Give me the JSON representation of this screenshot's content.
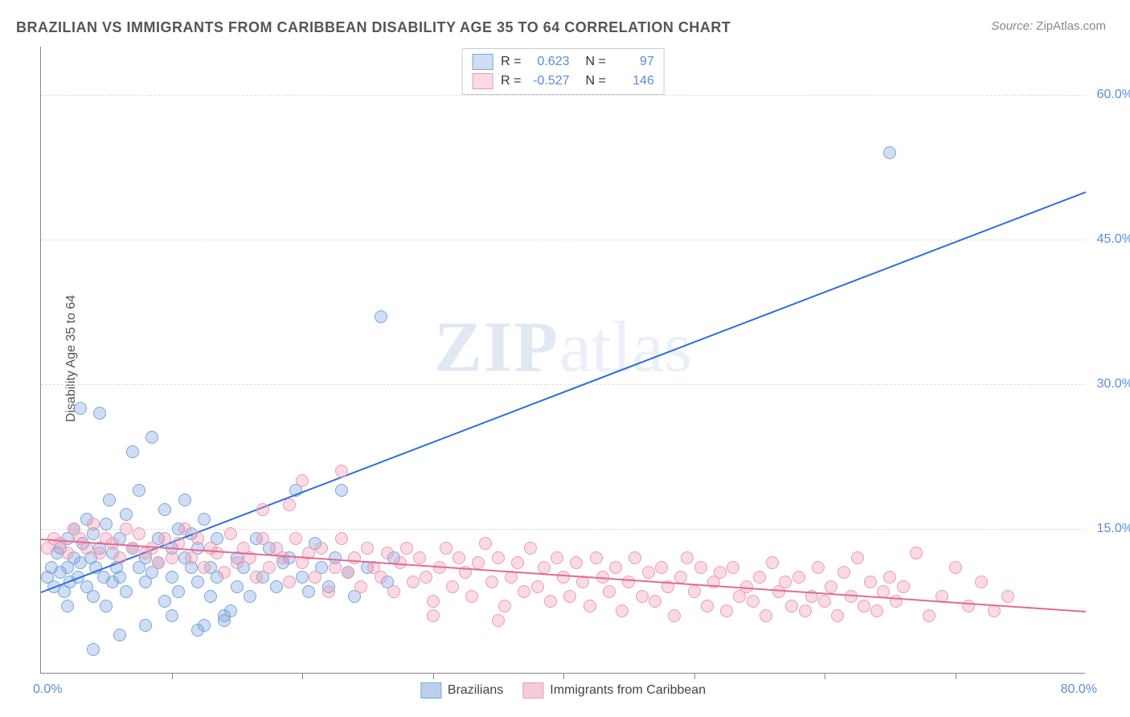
{
  "title": "BRAZILIAN VS IMMIGRANTS FROM CARIBBEAN DISABILITY AGE 35 TO 64 CORRELATION CHART",
  "source_prefix": "Source: ",
  "source_name": "ZipAtlas.com",
  "ylabel": "Disability Age 35 to 64",
  "watermark_a": "ZIP",
  "watermark_b": "atlas",
  "chart": {
    "type": "scatter",
    "xlim": [
      0,
      80
    ],
    "ylim": [
      0,
      65
    ],
    "x_tick_step": 10,
    "y_ticks": [
      15,
      30,
      45,
      60
    ],
    "y_tick_labels": [
      "15.0%",
      "30.0%",
      "45.0%",
      "60.0%"
    ],
    "x_label_min": "0.0%",
    "x_label_max": "80.0%",
    "grid_color": "#dddddd",
    "axis_color": "#888888",
    "background": "#ffffff",
    "marker_radius": 8,
    "series": [
      {
        "name": "Brazilians",
        "fill": "rgba(120,160,220,0.35)",
        "stroke": "#7aa5de",
        "R": "0.623",
        "N": "97",
        "trend": {
          "x1": 0,
          "y1": 8.5,
          "x2": 80,
          "y2": 50,
          "color": "#2e6fd6",
          "width": 2
        },
        "points": [
          [
            0.5,
            10
          ],
          [
            0.8,
            11
          ],
          [
            1,
            9
          ],
          [
            1.2,
            12.5
          ],
          [
            1.5,
            10.5
          ],
          [
            1.5,
            13
          ],
          [
            1.8,
            8.5
          ],
          [
            2,
            14
          ],
          [
            2,
            11
          ],
          [
            2.2,
            9.5
          ],
          [
            2.5,
            12
          ],
          [
            2.5,
            15
          ],
          [
            2.8,
            10
          ],
          [
            3,
            11.5
          ],
          [
            3,
            27.5
          ],
          [
            3.2,
            13.5
          ],
          [
            3.5,
            9
          ],
          [
            3.5,
            16
          ],
          [
            3.8,
            12
          ],
          [
            4,
            14.5
          ],
          [
            4,
            8
          ],
          [
            4.2,
            11
          ],
          [
            4.5,
            27
          ],
          [
            4.5,
            13
          ],
          [
            4.8,
            10
          ],
          [
            5,
            15.5
          ],
          [
            5,
            7
          ],
          [
            5.2,
            18
          ],
          [
            5.5,
            12.5
          ],
          [
            5.5,
            9.5
          ],
          [
            5.8,
            11
          ],
          [
            6,
            14
          ],
          [
            6,
            10
          ],
          [
            6.5,
            8.5
          ],
          [
            6.5,
            16.5
          ],
          [
            7,
            23
          ],
          [
            7,
            13
          ],
          [
            7.5,
            11
          ],
          [
            7.5,
            19
          ],
          [
            8,
            9.5
          ],
          [
            8,
            12
          ],
          [
            8.5,
            10.5
          ],
          [
            8.5,
            24.5
          ],
          [
            9,
            14
          ],
          [
            9,
            11.5
          ],
          [
            9.5,
            7.5
          ],
          [
            9.5,
            17
          ],
          [
            10,
            13
          ],
          [
            10,
            10
          ],
          [
            10.5,
            15
          ],
          [
            10.5,
            8.5
          ],
          [
            11,
            12
          ],
          [
            11,
            18
          ],
          [
            11.5,
            11
          ],
          [
            11.5,
            14.5
          ],
          [
            12,
            9.5
          ],
          [
            12,
            13
          ],
          [
            12.5,
            16
          ],
          [
            12.5,
            5
          ],
          [
            13,
            11
          ],
          [
            13,
            8
          ],
          [
            13.5,
            14
          ],
          [
            13.5,
            10
          ],
          [
            14,
            6
          ],
          [
            14.5,
            6.5
          ],
          [
            15,
            9
          ],
          [
            15,
            12
          ],
          [
            15.5,
            11
          ],
          [
            16,
            8
          ],
          [
            16.5,
            14
          ],
          [
            17,
            10
          ],
          [
            17.5,
            13
          ],
          [
            18,
            9
          ],
          [
            18.5,
            11.5
          ],
          [
            19,
            12
          ],
          [
            19.5,
            19
          ],
          [
            20,
            10
          ],
          [
            20.5,
            8.5
          ],
          [
            21,
            13.5
          ],
          [
            21.5,
            11
          ],
          [
            22,
            9
          ],
          [
            22.5,
            12
          ],
          [
            23,
            19
          ],
          [
            23.5,
            10.5
          ],
          [
            24,
            8
          ],
          [
            25,
            11
          ],
          [
            26,
            37
          ],
          [
            26.5,
            9.5
          ],
          [
            27,
            12
          ],
          [
            4,
            2.5
          ],
          [
            6,
            4
          ],
          [
            8,
            5
          ],
          [
            10,
            6
          ],
          [
            12,
            4.5
          ],
          [
            14,
            5.5
          ],
          [
            65,
            54
          ],
          [
            2,
            7
          ]
        ]
      },
      {
        "name": "Immigrants from Caribbean",
        "fill": "rgba(240,150,175,0.35)",
        "stroke": "#ea9cb5",
        "R": "-0.527",
        "N": "146",
        "trend": {
          "x1": 0,
          "y1": 14,
          "x2": 80,
          "y2": 6.5,
          "color": "#e36a92",
          "width": 2
        },
        "points": [
          [
            0.5,
            13
          ],
          [
            1,
            14
          ],
          [
            1.5,
            13.5
          ],
          [
            2,
            12.5
          ],
          [
            2.5,
            15
          ],
          [
            3,
            14
          ],
          [
            3.5,
            13
          ],
          [
            4,
            15.5
          ],
          [
            4.5,
            12.5
          ],
          [
            5,
            14
          ],
          [
            5.5,
            13.5
          ],
          [
            6,
            12
          ],
          [
            6.5,
            15
          ],
          [
            7,
            13
          ],
          [
            7.5,
            14.5
          ],
          [
            8,
            12.5
          ],
          [
            8.5,
            13
          ],
          [
            9,
            11.5
          ],
          [
            9.5,
            14
          ],
          [
            10,
            12
          ],
          [
            10.5,
            13.5
          ],
          [
            11,
            15
          ],
          [
            11.5,
            12
          ],
          [
            12,
            14
          ],
          [
            12.5,
            11
          ],
          [
            13,
            13
          ],
          [
            13.5,
            12.5
          ],
          [
            14,
            10.5
          ],
          [
            14.5,
            14.5
          ],
          [
            15,
            11.5
          ],
          [
            15.5,
            13
          ],
          [
            16,
            12
          ],
          [
            16.5,
            10
          ],
          [
            17,
            14
          ],
          [
            17.5,
            11
          ],
          [
            18,
            13
          ],
          [
            18.5,
            12
          ],
          [
            19,
            9.5
          ],
          [
            19.5,
            14
          ],
          [
            20,
            11.5
          ],
          [
            20.5,
            12.5
          ],
          [
            21,
            10
          ],
          [
            21.5,
            13
          ],
          [
            22,
            8.5
          ],
          [
            22.5,
            11
          ],
          [
            23,
            14
          ],
          [
            23.5,
            10.5
          ],
          [
            24,
            12
          ],
          [
            24.5,
            9
          ],
          [
            25,
            13
          ],
          [
            25.5,
            11
          ],
          [
            26,
            10
          ],
          [
            26.5,
            12.5
          ],
          [
            27,
            8.5
          ],
          [
            27.5,
            11.5
          ],
          [
            28,
            13
          ],
          [
            28.5,
            9.5
          ],
          [
            29,
            12
          ],
          [
            29.5,
            10
          ],
          [
            30,
            7.5
          ],
          [
            30.5,
            11
          ],
          [
            31,
            13
          ],
          [
            31.5,
            9
          ],
          [
            32,
            12
          ],
          [
            32.5,
            10.5
          ],
          [
            33,
            8
          ],
          [
            33.5,
            11.5
          ],
          [
            34,
            13.5
          ],
          [
            34.5,
            9.5
          ],
          [
            35,
            12
          ],
          [
            35.5,
            7
          ],
          [
            36,
            10
          ],
          [
            36.5,
            11.5
          ],
          [
            37,
            8.5
          ],
          [
            37.5,
            13
          ],
          [
            38,
            9
          ],
          [
            38.5,
            11
          ],
          [
            39,
            7.5
          ],
          [
            39.5,
            12
          ],
          [
            40,
            10
          ],
          [
            40.5,
            8
          ],
          [
            41,
            11.5
          ],
          [
            41.5,
            9.5
          ],
          [
            42,
            7
          ],
          [
            42.5,
            12
          ],
          [
            43,
            10
          ],
          [
            43.5,
            8.5
          ],
          [
            44,
            11
          ],
          [
            44.5,
            6.5
          ],
          [
            45,
            9.5
          ],
          [
            45.5,
            12
          ],
          [
            46,
            8
          ],
          [
            46.5,
            10.5
          ],
          [
            47,
            7.5
          ],
          [
            47.5,
            11
          ],
          [
            48,
            9
          ],
          [
            48.5,
            6
          ],
          [
            49,
            10
          ],
          [
            49.5,
            12
          ],
          [
            50,
            8.5
          ],
          [
            50.5,
            11
          ],
          [
            51,
            7
          ],
          [
            51.5,
            9.5
          ],
          [
            52,
            10.5
          ],
          [
            52.5,
            6.5
          ],
          [
            53,
            11
          ],
          [
            53.5,
            8
          ],
          [
            54,
            9
          ],
          [
            54.5,
            7.5
          ],
          [
            55,
            10
          ],
          [
            55.5,
            6
          ],
          [
            56,
            11.5
          ],
          [
            56.5,
            8.5
          ],
          [
            57,
            9.5
          ],
          [
            57.5,
            7
          ],
          [
            58,
            10
          ],
          [
            58.5,
            6.5
          ],
          [
            59,
            8
          ],
          [
            59.5,
            11
          ],
          [
            60,
            7.5
          ],
          [
            60.5,
            9
          ],
          [
            61,
            6
          ],
          [
            61.5,
            10.5
          ],
          [
            62,
            8
          ],
          [
            62.5,
            12
          ],
          [
            63,
            7
          ],
          [
            63.5,
            9.5
          ],
          [
            64,
            6.5
          ],
          [
            64.5,
            8.5
          ],
          [
            65,
            10
          ],
          [
            65.5,
            7.5
          ],
          [
            66,
            9
          ],
          [
            67,
            12.5
          ],
          [
            68,
            6
          ],
          [
            69,
            8
          ],
          [
            70,
            11
          ],
          [
            71,
            7
          ],
          [
            72,
            9.5
          ],
          [
            73,
            6.5
          ],
          [
            74,
            8
          ],
          [
            17,
            17
          ],
          [
            19,
            17.5
          ],
          [
            20,
            20
          ],
          [
            23,
            21
          ],
          [
            30,
            6
          ],
          [
            35,
            5.5
          ]
        ]
      }
    ]
  },
  "legend": [
    {
      "label": "Brazilians",
      "fill": "rgba(120,160,220,0.5)",
      "stroke": "#7aa5de"
    },
    {
      "label": "Immigrants from Caribbean",
      "fill": "rgba(240,150,175,0.5)",
      "stroke": "#ea9cb5"
    }
  ]
}
